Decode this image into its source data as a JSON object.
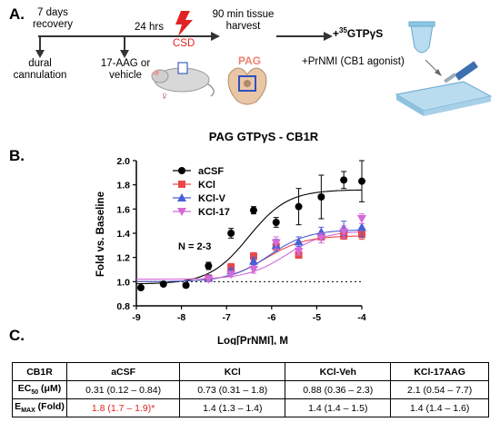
{
  "panelA": {
    "letter": "A.",
    "recovery_line1": "7 days",
    "recovery_line2": "recovery",
    "hrs": "24 hrs",
    "csd": "CSD",
    "harvest_line1": "90 min tissue",
    "harvest_line2": "harvest",
    "gtp_prefix": "+",
    "gtp_sup": "35",
    "gtp_main": "GTPγS",
    "dural_line1": "dural",
    "dural_line2": "cannulation",
    "drug_line1": "17-AAG or",
    "drug_line2": "vehicle",
    "pag": "PAG",
    "agonist": "+PrNMI (CB1 agonist)",
    "female_symbol": "♀",
    "colors": {
      "csd": "#e02424",
      "pag": "#f08070",
      "lightning": "#e02424"
    }
  },
  "panelB": {
    "letter": "B.",
    "n_note": "N = 2-3"
  },
  "chart_data": {
    "type": "scatter",
    "title": "PAG GTPγS - CB1R",
    "xlabel": "Log[PrNMI], M",
    "ylabel": "Fold vs. Baseline",
    "xlim": [
      -9,
      -4
    ],
    "ylim": [
      0.8,
      2.0
    ],
    "x_ticks": [
      "-9",
      "-8",
      "-7",
      "-6",
      "-5",
      "-4"
    ],
    "y_ticks": [
      "0.8",
      "1.0",
      "1.2",
      "1.4",
      "1.6",
      "1.8",
      "2.0"
    ],
    "baseline": 1.0,
    "legend_position": "top-left",
    "series": [
      {
        "name": "aCSF",
        "color": "#000000",
        "marker": "circle",
        "x": [
          -8.9,
          -8.4,
          -7.9,
          -7.4,
          -6.9,
          -6.4,
          -5.9,
          -5.4,
          -4.9,
          -4.4,
          -4.0
        ],
        "y": [
          0.95,
          0.98,
          0.97,
          1.13,
          1.4,
          1.59,
          1.49,
          1.62,
          1.7,
          1.84,
          1.83
        ],
        "err": [
          0.0,
          0.0,
          0.02,
          0.03,
          0.04,
          0.03,
          0.04,
          0.15,
          0.18,
          0.07,
          0.17
        ],
        "fit": {
          "bottom": 0.98,
          "top": 1.76,
          "logEC50": -6.51
        }
      },
      {
        "name": "KCl",
        "color": "#e8474b",
        "marker": "square",
        "x": [
          -7.4,
          -6.9,
          -6.4,
          -5.9,
          -5.4,
          -4.9,
          -4.4,
          -4.0
        ],
        "y": [
          1.03,
          1.12,
          1.21,
          1.29,
          1.22,
          1.37,
          1.38,
          1.39
        ],
        "err": [
          0.02,
          0.03,
          0.03,
          0.04,
          0.02,
          0.02,
          0.03,
          0.04
        ],
        "fit": {
          "bottom": 1.0,
          "top": 1.38,
          "logEC50": -6.14
        }
      },
      {
        "name": "KCl-V",
        "color": "#4a5fd6",
        "marker": "triangle",
        "x": [
          -7.4,
          -6.9,
          -6.4,
          -5.9,
          -5.4,
          -4.9,
          -4.4,
          -4.0
        ],
        "y": [
          1.03,
          1.09,
          1.17,
          1.3,
          1.33,
          1.41,
          1.44,
          1.45
        ],
        "err": [
          0.02,
          0.02,
          0.03,
          0.05,
          0.04,
          0.04,
          0.06,
          0.08
        ],
        "fit": {
          "bottom": 1.0,
          "top": 1.43,
          "logEC50": -6.06
        }
      },
      {
        "name": "KCl-17",
        "color": "#d46ad8",
        "marker": "triangle-down",
        "x": [
          -7.4,
          -6.9,
          -6.4,
          -5.9,
          -5.4,
          -4.9,
          -4.4,
          -4.0
        ],
        "y": [
          1.02,
          1.06,
          1.1,
          1.32,
          1.25,
          1.36,
          1.41,
          1.52
        ],
        "err": [
          0.02,
          0.02,
          0.03,
          0.05,
          0.03,
          0.04,
          0.05,
          0.04
        ],
        "fit": {
          "bottom": 1.02,
          "top": 1.42,
          "logEC50": -5.68
        }
      }
    ]
  },
  "panelC": {
    "letter": "C.",
    "headers": [
      "CB1R",
      "aCSF",
      "KCl",
      "KCl-Veh",
      "KCl-17AAG"
    ],
    "ec50_label_main": "EC",
    "ec50_label_sub": "50",
    "ec50_label_unit": " (μM)",
    "emax_label_main": "E",
    "emax_label_sub": "MAX",
    "emax_label_unit": " (Fold)",
    "ec50_values": [
      "0.31 (0.12 – 0.84)",
      "0.73 (0.31 – 1.8)",
      "0.88 (0.36 – 2.3)",
      "2.1 (0.54 – 7.7)"
    ],
    "emax_values": [
      "1.8 (1.7 – 1.9)*",
      "1.4 (1.3 – 1.4)",
      "1.4 (1.4 – 1.5)",
      "1.4 (1.4 – 1.6)"
    ],
    "highlight_color": "#e02424"
  }
}
